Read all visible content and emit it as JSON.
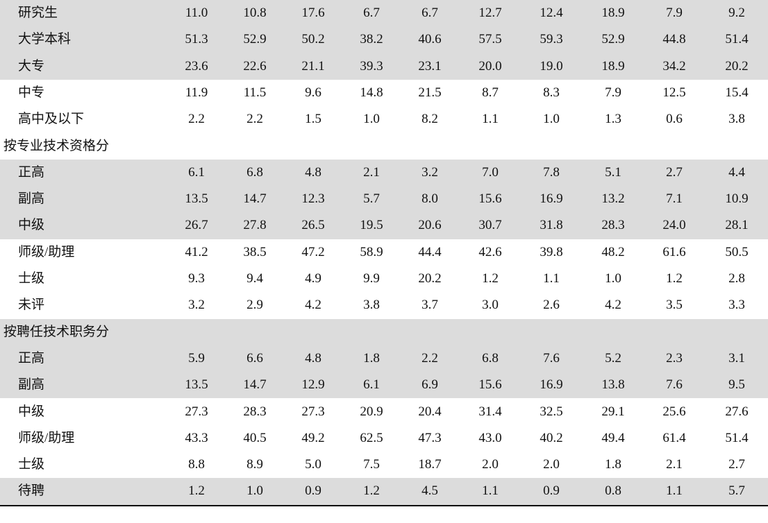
{
  "table": {
    "rows": [
      {
        "label": "研究生",
        "values": [
          "11.0",
          "10.8",
          "17.6",
          "6.7",
          "6.7",
          "12.7",
          "12.4",
          "18.9",
          "7.9",
          "9.2"
        ]
      },
      {
        "label": "大学本科",
        "values": [
          "51.3",
          "52.9",
          "50.2",
          "38.2",
          "40.6",
          "57.5",
          "59.3",
          "52.9",
          "44.8",
          "51.4"
        ]
      },
      {
        "label": "大专",
        "values": [
          "23.6",
          "22.6",
          "21.1",
          "39.3",
          "23.1",
          "20.0",
          "19.0",
          "18.9",
          "34.2",
          "20.2"
        ]
      },
      {
        "label": "中专",
        "values": [
          "11.9",
          "11.5",
          "9.6",
          "14.8",
          "21.5",
          "8.7",
          "8.3",
          "7.9",
          "12.5",
          "15.4"
        ]
      },
      {
        "label": "高中及以下",
        "values": [
          "2.2",
          "2.2",
          "1.5",
          "1.0",
          "8.2",
          "1.1",
          "1.0",
          "1.3",
          "0.6",
          "3.8"
        ]
      },
      {
        "label": "按专业技术资格分"
      },
      {
        "label": "正高",
        "values": [
          "6.1",
          "6.8",
          "4.8",
          "2.1",
          "3.2",
          "7.0",
          "7.8",
          "5.1",
          "2.7",
          "4.4"
        ]
      },
      {
        "label": "副高",
        "values": [
          "13.5",
          "14.7",
          "12.3",
          "5.7",
          "8.0",
          "15.6",
          "16.9",
          "13.2",
          "7.1",
          "10.9"
        ]
      },
      {
        "label": "中级",
        "values": [
          "26.7",
          "27.8",
          "26.5",
          "19.5",
          "20.6",
          "30.7",
          "31.8",
          "28.3",
          "24.0",
          "28.1"
        ]
      },
      {
        "label": "师级/助理",
        "values": [
          "41.2",
          "38.5",
          "47.2",
          "58.9",
          "44.4",
          "42.6",
          "39.8",
          "48.2",
          "61.6",
          "50.5"
        ]
      },
      {
        "label": "士级",
        "values": [
          "9.3",
          "9.4",
          "4.9",
          "9.9",
          "20.2",
          "1.2",
          "1.1",
          "1.0",
          "1.2",
          "2.8"
        ]
      },
      {
        "label": "未评",
        "values": [
          "3.2",
          "2.9",
          "4.2",
          "3.8",
          "3.7",
          "3.0",
          "2.6",
          "4.2",
          "3.5",
          "3.3"
        ]
      },
      {
        "label": "按聘任技术职务分"
      },
      {
        "label": "正高",
        "values": [
          "5.9",
          "6.6",
          "4.8",
          "1.8",
          "2.2",
          "6.8",
          "7.6",
          "5.2",
          "2.3",
          "3.1"
        ]
      },
      {
        "label": "副高",
        "values": [
          "13.5",
          "14.7",
          "12.9",
          "6.1",
          "6.9",
          "15.6",
          "16.9",
          "13.8",
          "7.6",
          "9.5"
        ]
      },
      {
        "label": "中级",
        "values": [
          "27.3",
          "28.3",
          "27.3",
          "20.9",
          "20.4",
          "31.4",
          "32.5",
          "29.1",
          "25.6",
          "27.6"
        ]
      },
      {
        "label": "师级/助理",
        "values": [
          "43.3",
          "40.5",
          "49.2",
          "62.5",
          "47.3",
          "43.0",
          "40.2",
          "49.4",
          "61.4",
          "51.4"
        ]
      },
      {
        "label": "士级",
        "values": [
          "8.8",
          "8.9",
          "5.0",
          "7.5",
          "18.7",
          "2.0",
          "2.0",
          "1.8",
          "2.1",
          "2.7"
        ]
      },
      {
        "label": "待聘",
        "values": [
          "1.2",
          "1.0",
          "0.9",
          "1.2",
          "4.5",
          "1.1",
          "0.9",
          "0.8",
          "1.1",
          "5.7"
        ]
      }
    ]
  }
}
